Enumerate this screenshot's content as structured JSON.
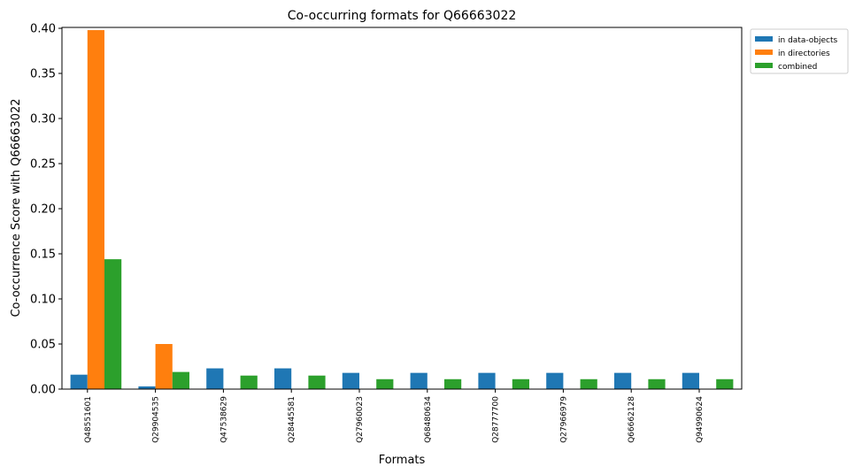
{
  "chart_data": {
    "type": "bar",
    "title": "Co-occurring formats for Q66663022",
    "xlabel": "Formats",
    "ylabel": "Co-occurrence Score with Q66663022",
    "ylim": [
      0,
      0.401
    ],
    "yticks": [
      0.0,
      0.05,
      0.1,
      0.15,
      0.2,
      0.25,
      0.3,
      0.35,
      0.4
    ],
    "ytick_labels": [
      "0.00",
      "0.05",
      "0.10",
      "0.15",
      "0.20",
      "0.25",
      "0.30",
      "0.35",
      "0.40"
    ],
    "grid": false,
    "legend_position": "outside-top-right",
    "categories": [
      "Q48551601",
      "Q29904535",
      "Q47538629",
      "Q28445581",
      "Q27960023",
      "Q68480634",
      "Q28777700",
      "Q27966979",
      "Q66662128",
      "Q94990624"
    ],
    "series": [
      {
        "name": "in data-objects",
        "color": "#1f77b4",
        "values": [
          0.016,
          0.003,
          0.023,
          0.023,
          0.018,
          0.018,
          0.018,
          0.018,
          0.018,
          0.018
        ]
      },
      {
        "name": "in directories",
        "color": "#ff7f0e",
        "values": [
          0.398,
          0.05,
          0,
          0,
          0,
          0,
          0,
          0,
          0,
          0
        ]
      },
      {
        "name": "combined",
        "color": "#2ca02c",
        "values": [
          0.144,
          0.019,
          0.015,
          0.015,
          0.011,
          0.011,
          0.011,
          0.011,
          0.011,
          0.011
        ]
      }
    ]
  }
}
